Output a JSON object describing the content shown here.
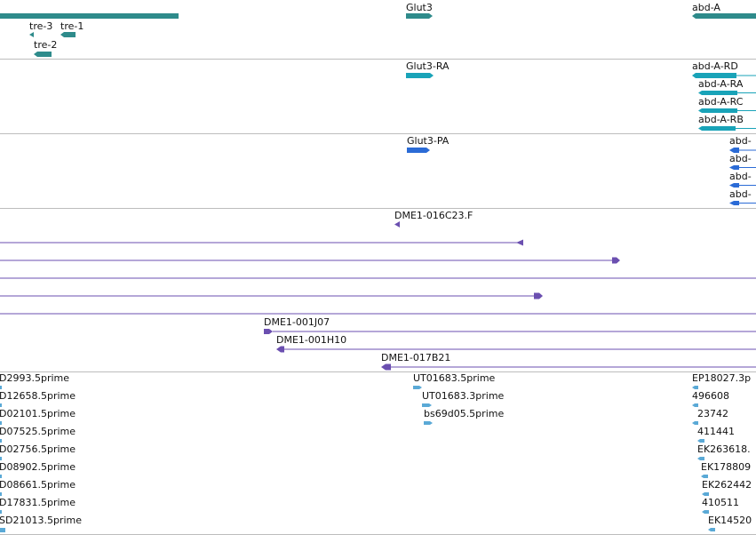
{
  "colors": {
    "gene": "#2e8b8b",
    "transcript": "#19a3b8",
    "protein": "#2b6bd6",
    "clone": "#6b4fb0",
    "est": "#5aa9d6",
    "divider": "#bdbdbd"
  },
  "tracks": {
    "genes": {
      "labels": [
        "Glut3",
        "abd-A",
        "tre-3",
        "tre-1",
        "tre-2"
      ]
    },
    "transcripts": {
      "labels": [
        "Glut3-RA",
        "abd-A-RD",
        "abd-A-RA",
        "abd-A-RC",
        "abd-A-RB"
      ]
    },
    "proteins": {
      "labels": [
        "Glut3-PA",
        "abd-",
        "abd-",
        "abd-",
        "abd-"
      ]
    },
    "clones": {
      "labels": [
        "DME1-016C23.F",
        "DME1-001J07",
        "DME1-001H10",
        "DME1-017B21"
      ]
    },
    "ests": {
      "left_labels": [
        "D2993.5prime",
        "D12658.5prime",
        "D02101.5prime",
        "D07525.5prime",
        "D02756.5prime",
        "D08902.5prime",
        "D08661.5prime",
        "D17831.5prime",
        "SD21013.5prime"
      ],
      "mid_labels": [
        "UT01683.5prime",
        "UT01683.3prime",
        "bs69d05.5prime"
      ],
      "right_labels": [
        "EP18027.3p",
        "496608",
        "23742",
        "411441",
        "EK263618.",
        "EK178809",
        "EK262442",
        "410511",
        "EK14520"
      ]
    }
  }
}
